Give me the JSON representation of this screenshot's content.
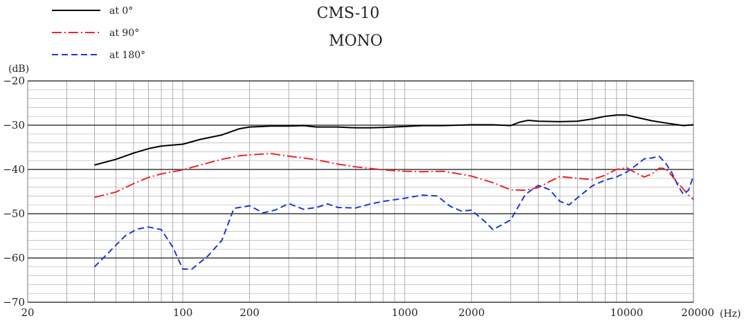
{
  "chart_data": {
    "type": "line",
    "title": "CMS-10",
    "subtitle": "MONO",
    "ylabel": "(dB)",
    "xlabel": "(Hz)",
    "x_scale": "log",
    "xlim": [
      20,
      20000
    ],
    "ylim": [
      -70,
      -20
    ],
    "x_ticks": [
      20,
      100,
      200,
      1000,
      2000,
      10000,
      20000
    ],
    "x_tick_labels": [
      "20",
      "100",
      "200",
      "1000",
      "2000",
      "10000",
      "20000"
    ],
    "y_ticks": [
      -20,
      -30,
      -40,
      -50,
      -60,
      -70
    ],
    "y_tick_labels": [
      "−20",
      "−30",
      "−40",
      "−50",
      "−60",
      "−70"
    ],
    "grid": true,
    "legend_position": "top-left",
    "series": [
      {
        "name": "at 0°",
        "color": "#000000",
        "style": "solid",
        "points": [
          [
            40,
            -39
          ],
          [
            50,
            -37.7
          ],
          [
            60,
            -36.3
          ],
          [
            70,
            -35.3
          ],
          [
            80,
            -34.7
          ],
          [
            100,
            -34.3
          ],
          [
            120,
            -33.2
          ],
          [
            150,
            -32.2
          ],
          [
            180,
            -30.8
          ],
          [
            200,
            -30.4
          ],
          [
            250,
            -30.2
          ],
          [
            300,
            -30.2
          ],
          [
            350,
            -30.1
          ],
          [
            400,
            -30.4
          ],
          [
            500,
            -30.4
          ],
          [
            600,
            -30.6
          ],
          [
            700,
            -30.6
          ],
          [
            800,
            -30.5
          ],
          [
            1000,
            -30.3
          ],
          [
            1200,
            -30.1
          ],
          [
            1500,
            -30.1
          ],
          [
            2000,
            -29.9
          ],
          [
            2500,
            -29.9
          ],
          [
            3000,
            -30.1
          ],
          [
            3300,
            -29.3
          ],
          [
            3600,
            -28.9
          ],
          [
            4000,
            -29.1
          ],
          [
            5000,
            -29.2
          ],
          [
            6000,
            -29.1
          ],
          [
            7000,
            -28.6
          ],
          [
            8000,
            -28.0
          ],
          [
            9000,
            -27.7
          ],
          [
            10000,
            -27.7
          ],
          [
            11000,
            -28.2
          ],
          [
            13000,
            -29.0
          ],
          [
            15000,
            -29.5
          ],
          [
            17000,
            -29.9
          ],
          [
            18000,
            -30.1
          ],
          [
            20000,
            -29.9
          ]
        ]
      },
      {
        "name": "at 90°",
        "color": "#e8262a",
        "style": "dash-dot",
        "points": [
          [
            40,
            -46.3
          ],
          [
            50,
            -45.1
          ],
          [
            60,
            -43.2
          ],
          [
            70,
            -41.8
          ],
          [
            80,
            -41.0
          ],
          [
            100,
            -40.1
          ],
          [
            120,
            -39.0
          ],
          [
            150,
            -37.7
          ],
          [
            180,
            -36.9
          ],
          [
            200,
            -36.7
          ],
          [
            250,
            -36.4
          ],
          [
            300,
            -37.0
          ],
          [
            400,
            -37.8
          ],
          [
            500,
            -38.8
          ],
          [
            600,
            -39.4
          ],
          [
            800,
            -40.1
          ],
          [
            1000,
            -40.4
          ],
          [
            1200,
            -40.5
          ],
          [
            1500,
            -40.4
          ],
          [
            2000,
            -41.5
          ],
          [
            2500,
            -43.0
          ],
          [
            3000,
            -44.6
          ],
          [
            3500,
            -44.7
          ],
          [
            4000,
            -44.1
          ],
          [
            4500,
            -42.7
          ],
          [
            5000,
            -41.6
          ],
          [
            6000,
            -42.0
          ],
          [
            7000,
            -42.3
          ],
          [
            8000,
            -41.3
          ],
          [
            9000,
            -40.0
          ],
          [
            10000,
            -39.6
          ],
          [
            11000,
            -40.8
          ],
          [
            12000,
            -41.7
          ],
          [
            13000,
            -41.0
          ],
          [
            14000,
            -39.7
          ],
          [
            15000,
            -39.8
          ],
          [
            17000,
            -43.0
          ],
          [
            19000,
            -45.8
          ],
          [
            20000,
            -46.8
          ]
        ]
      },
      {
        "name": "at 180°",
        "color": "#1f35d6",
        "style": "dashed",
        "points": [
          [
            40,
            -62
          ],
          [
            48,
            -58
          ],
          [
            55,
            -55
          ],
          [
            62,
            -53.5
          ],
          [
            70,
            -53
          ],
          [
            80,
            -53.6
          ],
          [
            90,
            -57.5
          ],
          [
            100,
            -62.5
          ],
          [
            110,
            -62.5
          ],
          [
            130,
            -59.5
          ],
          [
            150,
            -56
          ],
          [
            170,
            -48.8
          ],
          [
            200,
            -48.2
          ],
          [
            230,
            -49.8
          ],
          [
            260,
            -49.2
          ],
          [
            300,
            -47.7
          ],
          [
            350,
            -49.0
          ],
          [
            400,
            -48.6
          ],
          [
            450,
            -47.8
          ],
          [
            500,
            -48.6
          ],
          [
            600,
            -48.7
          ],
          [
            700,
            -47.8
          ],
          [
            800,
            -47.2
          ],
          [
            1000,
            -46.5
          ],
          [
            1200,
            -45.8
          ],
          [
            1400,
            -46.0
          ],
          [
            1600,
            -48.3
          ],
          [
            1800,
            -49.4
          ],
          [
            2000,
            -49.2
          ],
          [
            2300,
            -51.8
          ],
          [
            2500,
            -53.6
          ],
          [
            3000,
            -51.4
          ],
          [
            3500,
            -45.6
          ],
          [
            4000,
            -43.6
          ],
          [
            4500,
            -44.6
          ],
          [
            5000,
            -47.2
          ],
          [
            5500,
            -48.0
          ],
          [
            6000,
            -46.4
          ],
          [
            7000,
            -43.7
          ],
          [
            8000,
            -42.4
          ],
          [
            9000,
            -41.7
          ],
          [
            10000,
            -40.6
          ],
          [
            11000,
            -39.1
          ],
          [
            12000,
            -37.6
          ],
          [
            13000,
            -37.4
          ],
          [
            14000,
            -37.0
          ],
          [
            15000,
            -38.6
          ],
          [
            16000,
            -40.8
          ],
          [
            17000,
            -43.6
          ],
          [
            18000,
            -45.6
          ],
          [
            19000,
            -44.7
          ],
          [
            20000,
            -41.4
          ]
        ]
      }
    ]
  }
}
